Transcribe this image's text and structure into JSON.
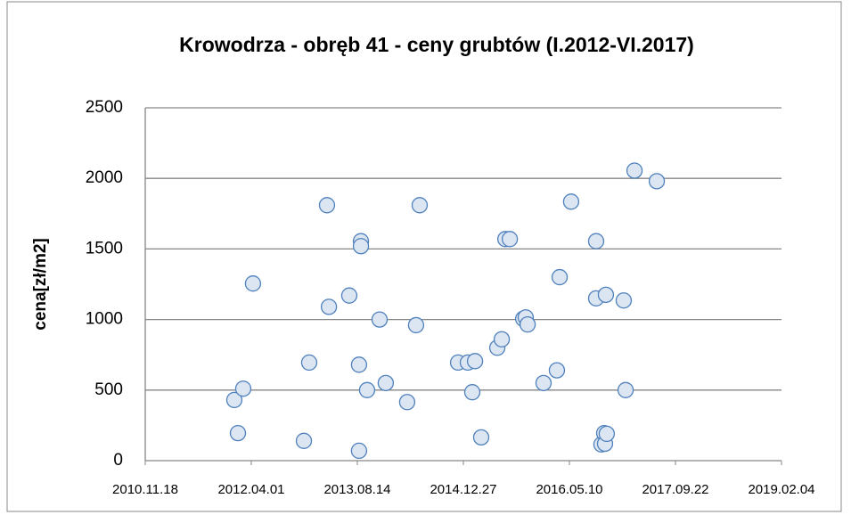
{
  "chart_data": {
    "type": "scatter",
    "title": "Krowodrza - obręb 41 - ceny grubtów (I.2012-VI.2017)",
    "ylabel": "cena[zł/m2]",
    "color": "#dce6f2",
    "edgecolor": "#4f81bd",
    "grid": true,
    "xlim": [
      40500,
      43500
    ],
    "xticks": [
      {
        "value": 40500,
        "label": "2010.11.18"
      },
      {
        "value": 41000,
        "label": "2012.04.01"
      },
      {
        "value": 41500,
        "label": "2013.08.14"
      },
      {
        "value": 42000,
        "label": "2014.12.27"
      },
      {
        "value": 42500,
        "label": "2016.05.10"
      },
      {
        "value": 43000,
        "label": "2017.09.22"
      },
      {
        "value": 43500,
        "label": "2019.02.04"
      }
    ],
    "ylim": [
      0,
      2500
    ],
    "yticks": [
      0,
      500,
      1000,
      1500,
      2000,
      2500
    ],
    "x": [
      40920,
      40937,
      40962,
      41008,
      41248,
      41273,
      41357,
      41366,
      41462,
      41508,
      41508,
      41517,
      41517,
      41546,
      41605,
      41634,
      41735,
      41777,
      41794,
      41975,
      42021,
      42042,
      42055,
      42084,
      42160,
      42181,
      42198,
      42219,
      42282,
      42294,
      42303,
      42378,
      42441,
      42454,
      42508,
      42626,
      42626,
      42651,
      42664,
      42668,
      42672,
      42676,
      42756,
      42765,
      42807,
      42912
    ],
    "values": [
      430,
      195,
      510,
      1255,
      140,
      695,
      1810,
      1090,
      1170,
      70,
      680,
      1555,
      1520,
      500,
      1000,
      550,
      415,
      960,
      1810,
      695,
      695,
      485,
      705,
      165,
      800,
      860,
      1570,
      1570,
      1005,
      1015,
      965,
      550,
      640,
      1300,
      1835,
      1555,
      1150,
      115,
      195,
      120,
      1175,
      190,
      1135,
      500,
      2055,
      1980
    ]
  }
}
